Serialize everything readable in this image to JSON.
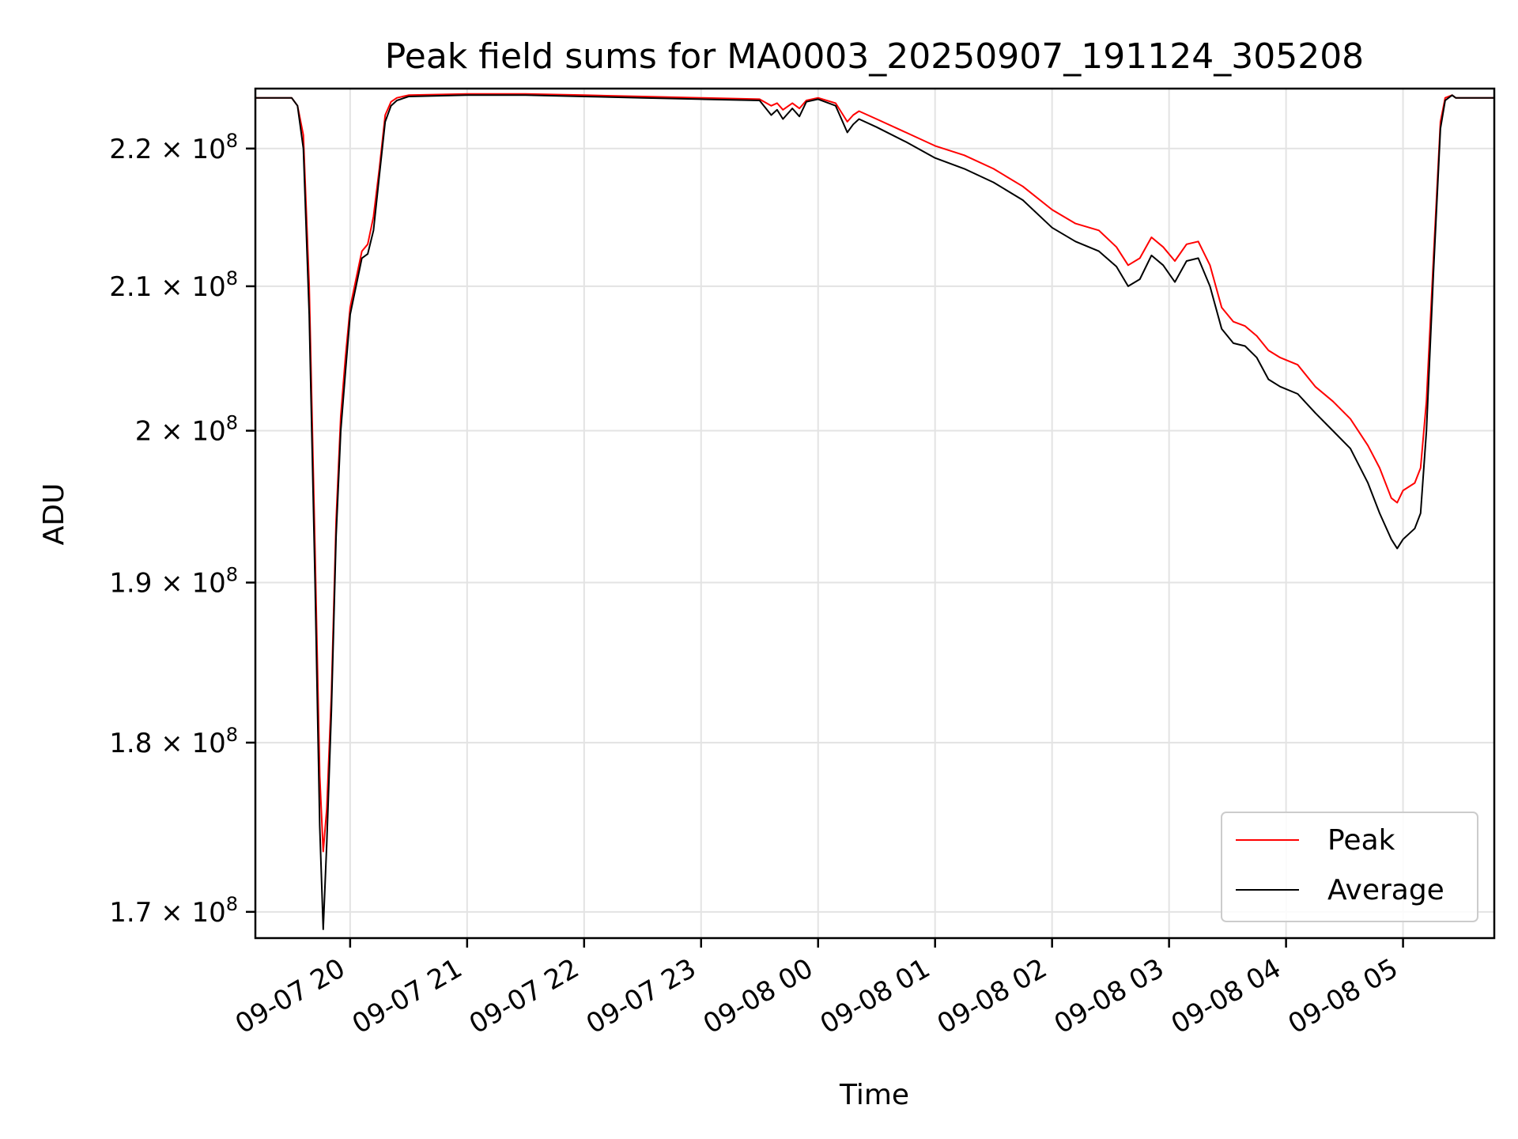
{
  "chart_data": {
    "type": "line",
    "title": "Peak field sums for MA0003_20250907_191124_305208",
    "xlabel": "Time",
    "ylabel": "ADU",
    "y_scale": "log",
    "grid": true,
    "legend_position": "lower-right",
    "x_unit": "hours since 2025-09-07 00:00",
    "xlim": [
      19.19,
      29.78
    ],
    "ylim": [
      168500000.0,
      224500000.0
    ],
    "x_ticks": [
      {
        "value": 20,
        "label": "09-07 20"
      },
      {
        "value": 21,
        "label": "09-07 21"
      },
      {
        "value": 22,
        "label": "09-07 22"
      },
      {
        "value": 23,
        "label": "09-07 23"
      },
      {
        "value": 24,
        "label": "09-08 00"
      },
      {
        "value": 25,
        "label": "09-08 01"
      },
      {
        "value": 26,
        "label": "09-08 02"
      },
      {
        "value": 27,
        "label": "09-08 03"
      },
      {
        "value": 28,
        "label": "09-08 04"
      },
      {
        "value": 29,
        "label": "09-08 05"
      }
    ],
    "y_ticks": [
      {
        "value": 170000000.0,
        "mantissa": "1.7",
        "exp": "8"
      },
      {
        "value": 180000000.0,
        "mantissa": "1.8",
        "exp": "8"
      },
      {
        "value": 190000000.0,
        "mantissa": "1.9",
        "exp": "8"
      },
      {
        "value": 200000000.0,
        "mantissa": "2",
        "exp": "8"
      },
      {
        "value": 210000000.0,
        "mantissa": "2.1",
        "exp": "8"
      },
      {
        "value": 220000000.0,
        "mantissa": "2.2",
        "exp": "8"
      }
    ],
    "series": [
      {
        "name": "Peak",
        "color": "#ff0000",
        "points": [
          [
            19.19,
            223800000.0
          ],
          [
            19.5,
            223800000.0
          ],
          [
            19.55,
            223200000.0
          ],
          [
            19.6,
            221000000.0
          ],
          [
            19.65,
            210000000.0
          ],
          [
            19.7,
            192000000.0
          ],
          [
            19.74,
            178000000.0
          ],
          [
            19.77,
            173500000.0
          ],
          [
            19.8,
            176000000.0
          ],
          [
            19.84,
            183000000.0
          ],
          [
            19.88,
            194000000.0
          ],
          [
            19.92,
            201000000.0
          ],
          [
            19.96,
            205000000.0
          ],
          [
            20.0,
            208500000.0
          ],
          [
            20.05,
            210500000.0
          ],
          [
            20.1,
            212500000.0
          ],
          [
            20.15,
            213000000.0
          ],
          [
            20.2,
            215000000.0
          ],
          [
            20.25,
            218500000.0
          ],
          [
            20.3,
            222500000.0
          ],
          [
            20.35,
            223500000.0
          ],
          [
            20.4,
            223800000.0
          ],
          [
            20.5,
            224000000.0
          ],
          [
            21.0,
            224100000.0
          ],
          [
            21.5,
            224100000.0
          ],
          [
            22.0,
            224000000.0
          ],
          [
            22.5,
            223900000.0
          ],
          [
            23.0,
            223800000.0
          ],
          [
            23.5,
            223700000.0
          ],
          [
            23.6,
            223200000.0
          ],
          [
            23.65,
            223400000.0
          ],
          [
            23.7,
            222900000.0
          ],
          [
            23.78,
            223400000.0
          ],
          [
            23.84,
            223000000.0
          ],
          [
            23.9,
            223600000.0
          ],
          [
            24.0,
            223800000.0
          ],
          [
            24.15,
            223400000.0
          ],
          [
            24.25,
            222000000.0
          ],
          [
            24.3,
            222500000.0
          ],
          [
            24.35,
            222800000.0
          ],
          [
            24.5,
            222200000.0
          ],
          [
            24.75,
            221200000.0
          ],
          [
            25.0,
            220200000.0
          ],
          [
            25.25,
            219500000.0
          ],
          [
            25.5,
            218500000.0
          ],
          [
            25.75,
            217200000.0
          ],
          [
            26.0,
            215500000.0
          ],
          [
            26.2,
            214500000.0
          ],
          [
            26.4,
            214000000.0
          ],
          [
            26.55,
            212800000.0
          ],
          [
            26.65,
            211500000.0
          ],
          [
            26.75,
            212000000.0
          ],
          [
            26.85,
            213500000.0
          ],
          [
            26.95,
            212800000.0
          ],
          [
            27.05,
            211800000.0
          ],
          [
            27.15,
            213000000.0
          ],
          [
            27.25,
            213200000.0
          ],
          [
            27.35,
            211500000.0
          ],
          [
            27.45,
            208500000.0
          ],
          [
            27.55,
            207500000.0
          ],
          [
            27.65,
            207200000.0
          ],
          [
            27.75,
            206500000.0
          ],
          [
            27.85,
            205500000.0
          ],
          [
            27.95,
            205000000.0
          ],
          [
            28.1,
            204500000.0
          ],
          [
            28.25,
            203000000.0
          ],
          [
            28.4,
            202000000.0
          ],
          [
            28.55,
            200800000.0
          ],
          [
            28.7,
            199000000.0
          ],
          [
            28.8,
            197500000.0
          ],
          [
            28.9,
            195500000.0
          ],
          [
            28.95,
            195200000.0
          ],
          [
            29.0,
            196000000.0
          ],
          [
            29.1,
            196500000.0
          ],
          [
            29.15,
            197500000.0
          ],
          [
            29.2,
            202000000.0
          ],
          [
            29.26,
            212000000.0
          ],
          [
            29.32,
            222000000.0
          ],
          [
            29.36,
            223800000.0
          ],
          [
            29.42,
            224000000.0
          ],
          [
            29.45,
            223800000.0
          ],
          [
            29.78,
            223800000.0
          ]
        ]
      },
      {
        "name": "Average",
        "color": "#000000",
        "points": [
          [
            19.19,
            223800000.0
          ],
          [
            19.5,
            223800000.0
          ],
          [
            19.55,
            223200000.0
          ],
          [
            19.6,
            220000000.0
          ],
          [
            19.65,
            208000000.0
          ],
          [
            19.7,
            190000000.0
          ],
          [
            19.74,
            175000000.0
          ],
          [
            19.77,
            169000000.0
          ],
          [
            19.8,
            174000000.0
          ],
          [
            19.84,
            182000000.0
          ],
          [
            19.88,
            193000000.0
          ],
          [
            19.92,
            200000000.0
          ],
          [
            19.96,
            204000000.0
          ],
          [
            20.0,
            208000000.0
          ],
          [
            20.05,
            210000000.0
          ],
          [
            20.1,
            212000000.0
          ],
          [
            20.15,
            212300000.0
          ],
          [
            20.2,
            214000000.0
          ],
          [
            20.25,
            218000000.0
          ],
          [
            20.3,
            222000000.0
          ],
          [
            20.35,
            223200000.0
          ],
          [
            20.4,
            223600000.0
          ],
          [
            20.5,
            223900000.0
          ],
          [
            21.0,
            224000000.0
          ],
          [
            21.5,
            224000000.0
          ],
          [
            22.0,
            223900000.0
          ],
          [
            22.5,
            223800000.0
          ],
          [
            23.0,
            223700000.0
          ],
          [
            23.5,
            223600000.0
          ],
          [
            23.6,
            222500000.0
          ],
          [
            23.65,
            222900000.0
          ],
          [
            23.7,
            222200000.0
          ],
          [
            23.78,
            223000000.0
          ],
          [
            23.84,
            222400000.0
          ],
          [
            23.9,
            223500000.0
          ],
          [
            24.0,
            223700000.0
          ],
          [
            24.15,
            223200000.0
          ],
          [
            24.25,
            221200000.0
          ],
          [
            24.3,
            221800000.0
          ],
          [
            24.35,
            222200000.0
          ],
          [
            24.5,
            221600000.0
          ],
          [
            24.75,
            220500000.0
          ],
          [
            25.0,
            219300000.0
          ],
          [
            25.25,
            218500000.0
          ],
          [
            25.5,
            217500000.0
          ],
          [
            25.75,
            216200000.0
          ],
          [
            26.0,
            214200000.0
          ],
          [
            26.2,
            213200000.0
          ],
          [
            26.4,
            212500000.0
          ],
          [
            26.55,
            211400000.0
          ],
          [
            26.65,
            210000000.0
          ],
          [
            26.75,
            210500000.0
          ],
          [
            26.85,
            212200000.0
          ],
          [
            26.95,
            211500000.0
          ],
          [
            27.05,
            210300000.0
          ],
          [
            27.15,
            211800000.0
          ],
          [
            27.25,
            212000000.0
          ],
          [
            27.35,
            210000000.0
          ],
          [
            27.45,
            207000000.0
          ],
          [
            27.55,
            206000000.0
          ],
          [
            27.65,
            205800000.0
          ],
          [
            27.75,
            205000000.0
          ],
          [
            27.85,
            203500000.0
          ],
          [
            27.95,
            203000000.0
          ],
          [
            28.1,
            202500000.0
          ],
          [
            28.25,
            201200000.0
          ],
          [
            28.4,
            200000000.0
          ],
          [
            28.55,
            198800000.0
          ],
          [
            28.7,
            196500000.0
          ],
          [
            28.8,
            194500000.0
          ],
          [
            28.9,
            192800000.0
          ],
          [
            28.95,
            192200000.0
          ],
          [
            29.0,
            192800000.0
          ],
          [
            29.1,
            193500000.0
          ],
          [
            29.15,
            194500000.0
          ],
          [
            29.2,
            200000000.0
          ],
          [
            29.26,
            211000000.0
          ],
          [
            29.32,
            221500000.0
          ],
          [
            29.36,
            223600000.0
          ],
          [
            29.42,
            224000000.0
          ],
          [
            29.45,
            223800000.0
          ],
          [
            29.78,
            223800000.0
          ]
        ]
      }
    ]
  }
}
